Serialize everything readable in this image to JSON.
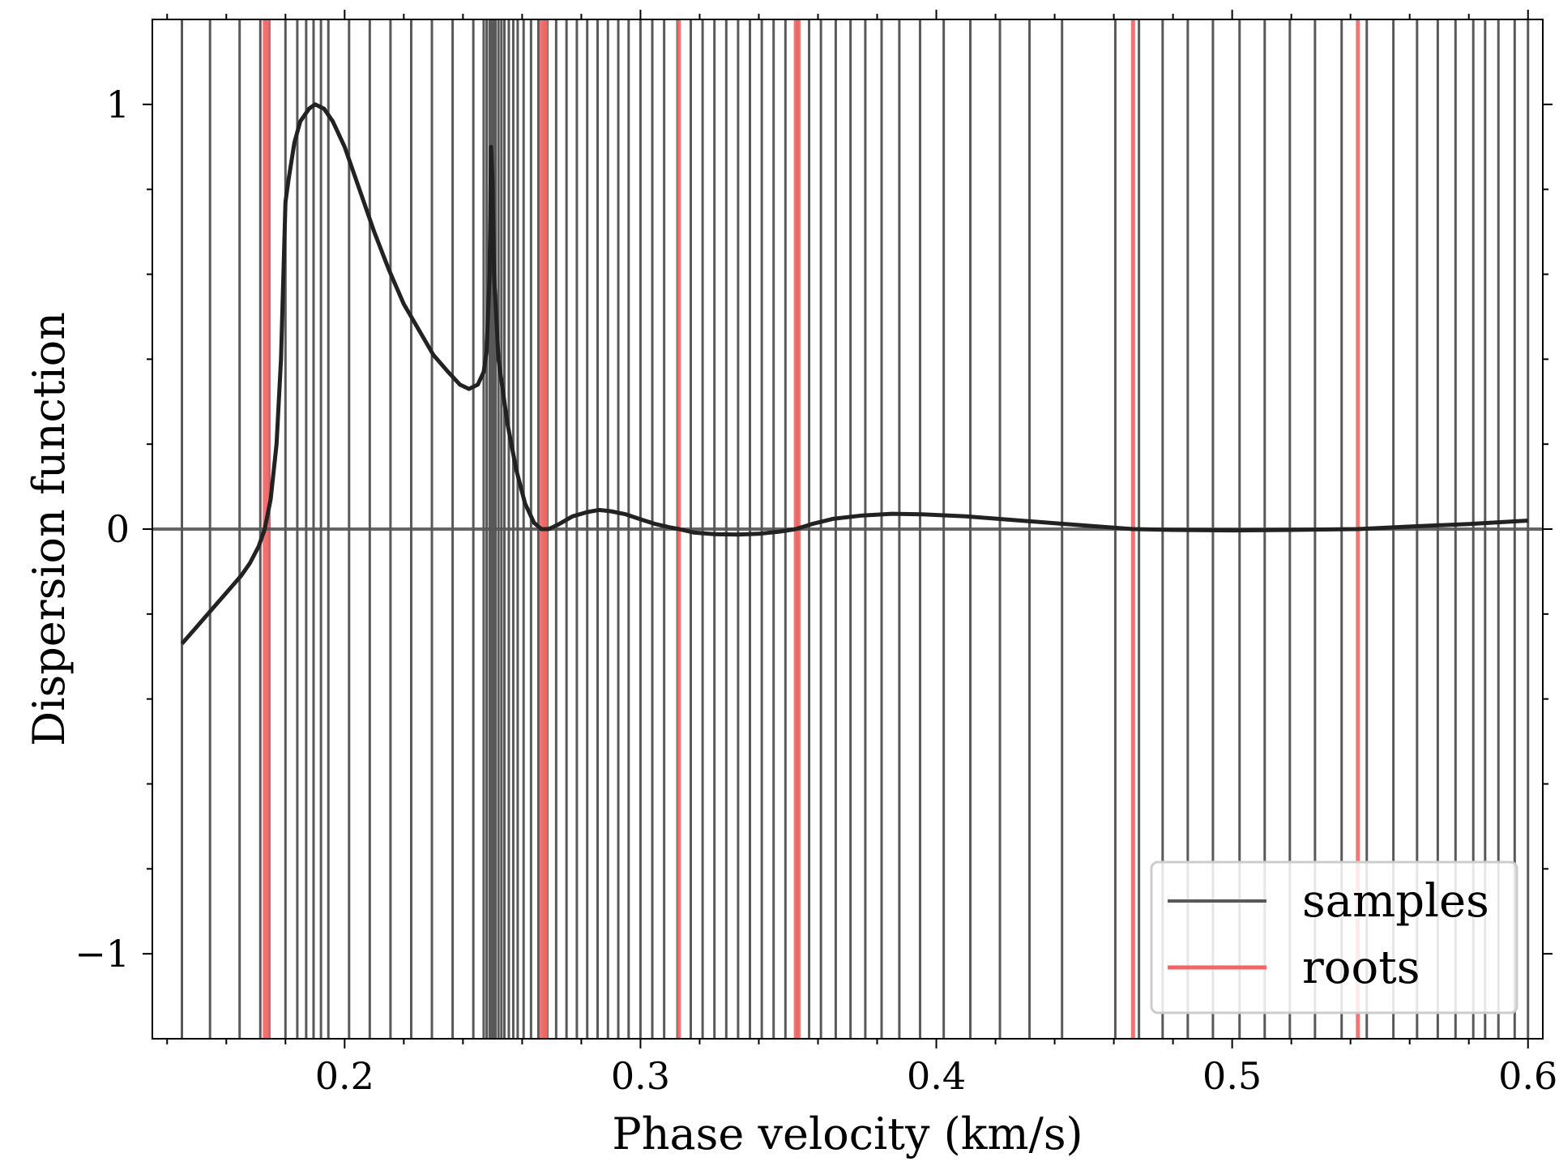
{
  "chart_data": {
    "type": "line",
    "xlabel": "Phase velocity (km/s)",
    "ylabel": "Dispersion function",
    "xlim": [
      0.135,
      0.605
    ],
    "ylim": [
      -1.2,
      1.2
    ],
    "x_ticks": [
      0.2,
      0.3,
      0.4,
      0.5,
      0.6
    ],
    "x_tick_labels": [
      "0.2",
      "0.3",
      "0.4",
      "0.5",
      "0.6"
    ],
    "y_ticks": [
      -1,
      0,
      1
    ],
    "y_tick_labels": [
      "−1",
      "0",
      "1"
    ],
    "x_minor_step": 0.02,
    "y_minor_step": 0.2,
    "grid": false,
    "zero_line": 0,
    "legend_position": "lower-right",
    "colors": {
      "samples": "#595959",
      "roots": "#ee6666",
      "curve": "#222222",
      "zero_line": "#555555"
    },
    "series": [
      {
        "name": "samples",
        "type": "vlines",
        "x": [
          0.145,
          0.1545,
          0.1645,
          0.1715,
          0.1745,
          0.18,
          0.184,
          0.187,
          0.1895,
          0.192,
          0.1945,
          0.2015,
          0.2085,
          0.2155,
          0.2225,
          0.2295,
          0.2365,
          0.2435,
          0.247,
          0.248,
          0.249,
          0.2495,
          0.25,
          0.2505,
          0.251,
          0.252,
          0.253,
          0.254,
          0.2555,
          0.257,
          0.2585,
          0.2605,
          0.263,
          0.2655,
          0.2685,
          0.2715,
          0.275,
          0.2785,
          0.282,
          0.2855,
          0.289,
          0.2925,
          0.296,
          0.3,
          0.304,
          0.308,
          0.3125,
          0.317,
          0.321,
          0.325,
          0.329,
          0.333,
          0.337,
          0.341,
          0.345,
          0.349,
          0.353,
          0.357,
          0.361,
          0.366,
          0.371,
          0.376,
          0.3815,
          0.3875,
          0.3945,
          0.4025,
          0.4115,
          0.4215,
          0.4315,
          0.4425,
          0.4605,
          0.4685,
          0.4765,
          0.485,
          0.4935,
          0.5025,
          0.511,
          0.5195,
          0.528,
          0.537,
          0.5455,
          0.5545,
          0.5625,
          0.5695,
          0.5755,
          0.5815,
          0.5855,
          0.59,
          0.5955,
          0.6
        ]
      },
      {
        "name": "roots",
        "type": "vlines",
        "x": [
          0.173,
          0.174,
          0.2665,
          0.2675,
          0.268,
          0.313,
          0.3525,
          0.3535,
          0.4665,
          0.5425
        ]
      },
      {
        "name": "dispersion",
        "type": "line",
        "points": [
          [
            0.145,
            -0.27
          ],
          [
            0.15,
            -0.23
          ],
          [
            0.155,
            -0.19
          ],
          [
            0.16,
            -0.15
          ],
          [
            0.165,
            -0.11
          ],
          [
            0.168,
            -0.08
          ],
          [
            0.171,
            -0.04
          ],
          [
            0.173,
            0.0
          ],
          [
            0.175,
            0.07
          ],
          [
            0.177,
            0.2
          ],
          [
            0.1785,
            0.4
          ],
          [
            0.18,
            0.77
          ],
          [
            0.181,
            0.82
          ],
          [
            0.183,
            0.91
          ],
          [
            0.185,
            0.96
          ],
          [
            0.188,
            0.99
          ],
          [
            0.19,
            1.0
          ],
          [
            0.193,
            0.99
          ],
          [
            0.196,
            0.96
          ],
          [
            0.2,
            0.9
          ],
          [
            0.205,
            0.8
          ],
          [
            0.21,
            0.7
          ],
          [
            0.215,
            0.61
          ],
          [
            0.22,
            0.53
          ],
          [
            0.225,
            0.47
          ],
          [
            0.23,
            0.41
          ],
          [
            0.235,
            0.37
          ],
          [
            0.239,
            0.34
          ],
          [
            0.242,
            0.33
          ],
          [
            0.245,
            0.34
          ],
          [
            0.247,
            0.37
          ],
          [
            0.248,
            0.42
          ],
          [
            0.249,
            0.6
          ],
          [
            0.2495,
            0.9
          ],
          [
            0.25,
            0.82
          ],
          [
            0.2505,
            0.6
          ],
          [
            0.252,
            0.4
          ],
          [
            0.255,
            0.25
          ],
          [
            0.258,
            0.14
          ],
          [
            0.261,
            0.06
          ],
          [
            0.264,
            0.015
          ],
          [
            0.2665,
            0.0
          ],
          [
            0.269,
            0.0
          ],
          [
            0.272,
            0.01
          ],
          [
            0.277,
            0.03
          ],
          [
            0.282,
            0.04
          ],
          [
            0.286,
            0.045
          ],
          [
            0.29,
            0.042
          ],
          [
            0.295,
            0.035
          ],
          [
            0.3,
            0.023
          ],
          [
            0.305,
            0.012
          ],
          [
            0.31,
            0.004
          ],
          [
            0.313,
            0.0
          ],
          [
            0.318,
            -0.008
          ],
          [
            0.325,
            -0.012
          ],
          [
            0.333,
            -0.013
          ],
          [
            0.34,
            -0.011
          ],
          [
            0.347,
            -0.006
          ],
          [
            0.3525,
            0.0
          ],
          [
            0.358,
            0.012
          ],
          [
            0.365,
            0.024
          ],
          [
            0.375,
            0.032
          ],
          [
            0.385,
            0.036
          ],
          [
            0.395,
            0.035
          ],
          [
            0.41,
            0.03
          ],
          [
            0.425,
            0.022
          ],
          [
            0.44,
            0.014
          ],
          [
            0.455,
            0.006
          ],
          [
            0.4665,
            0.0
          ],
          [
            0.48,
            -0.002
          ],
          [
            0.5,
            -0.003
          ],
          [
            0.52,
            -0.002
          ],
          [
            0.5425,
            0.0
          ],
          [
            0.56,
            0.006
          ],
          [
            0.58,
            0.012
          ],
          [
            0.6,
            0.02
          ]
        ]
      }
    ]
  },
  "legend": {
    "items": [
      {
        "label": "samples",
        "color": "#595959"
      },
      {
        "label": "roots",
        "color": "#ee6666"
      }
    ]
  }
}
